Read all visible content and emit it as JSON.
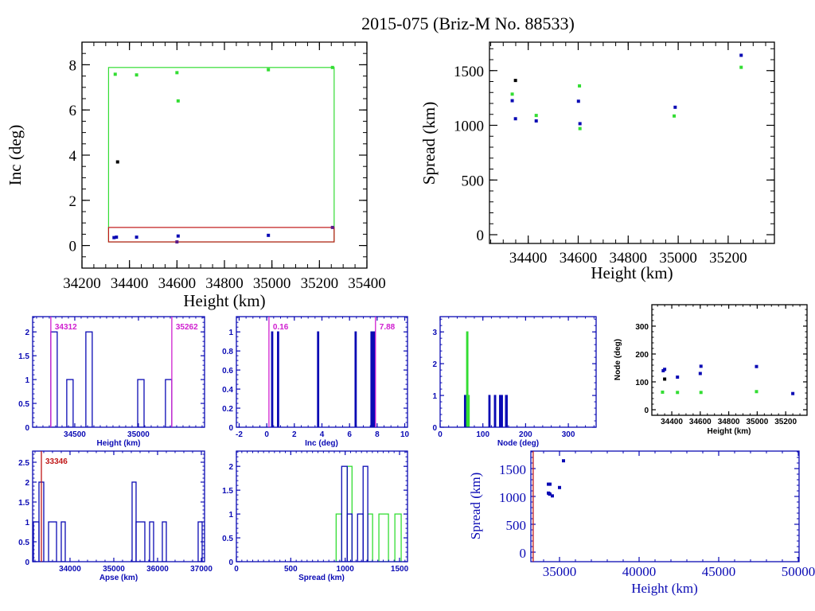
{
  "title": "2015-075 (Briz-M No. 88533)",
  "colors": {
    "black": "#000000",
    "blue": "#0a0ab4",
    "green": "#33dd33",
    "magenta": "#d020d0",
    "red": "#c01818",
    "purple": "#5a1a8a"
  },
  "chart_data": [
    {
      "id": "inc-vs-height",
      "type": "scatter",
      "xlabel": "Height (km)",
      "ylabel": "Inc (deg)",
      "xlim": [
        34200,
        35400
      ],
      "ylim": [
        -1,
        9
      ],
      "xticks": [
        34200,
        34400,
        34600,
        34800,
        35000,
        35200,
        35400
      ],
      "yticks": [
        0,
        2,
        4,
        6,
        8
      ],
      "boxes": [
        {
          "color": "green",
          "x": [
            34312,
            35262
          ],
          "y": [
            0.16,
            7.88
          ]
        },
        {
          "color": "red",
          "x": [
            34312,
            35262
          ],
          "y": [
            0.16,
            0.8
          ]
        }
      ],
      "series": [
        {
          "color": "green",
          "points": [
            [
              34340,
              7.58
            ],
            [
              34430,
              7.55
            ],
            [
              34600,
              7.65
            ],
            [
              34605,
              6.4
            ],
            [
              34985,
              7.78
            ],
            [
              35255,
              7.88
            ]
          ]
        },
        {
          "color": "black",
          "points": [
            [
              34350,
              3.7
            ]
          ]
        },
        {
          "color": "blue",
          "points": [
            [
              34335,
              0.35
            ],
            [
              34345,
              0.37
            ],
            [
              34430,
              0.37
            ],
            [
              34605,
              0.42
            ],
            [
              34985,
              0.45
            ]
          ]
        },
        {
          "color": "purple",
          "points": [
            [
              34600,
              0.16
            ],
            [
              35255,
              0.8
            ]
          ]
        }
      ]
    },
    {
      "id": "spread-vs-height",
      "type": "scatter",
      "xlabel": "Height (km)",
      "ylabel": "Spread (km)",
      "xlim": [
        34245,
        35385
      ],
      "ylim": [
        -80,
        1760
      ],
      "xticks": [
        34400,
        34600,
        34800,
        35000,
        35200
      ],
      "yticks": [
        0,
        500,
        1000,
        1500
      ],
      "series": [
        {
          "color": "black",
          "points": [
            [
              34349,
              1410
            ]
          ]
        },
        {
          "color": "green",
          "points": [
            [
              34336,
              1285
            ],
            [
              34432,
              1090
            ],
            [
              34605,
              1360
            ],
            [
              34607,
              970
            ],
            [
              34984,
              1085
            ],
            [
              35252,
              1530
            ]
          ]
        },
        {
          "color": "blue",
          "points": [
            [
              34336,
              1225
            ],
            [
              34349,
              1060
            ],
            [
              34432,
              1040
            ],
            [
              34601,
              1220
            ],
            [
              34607,
              1015
            ],
            [
              34988,
              1165
            ],
            [
              35252,
              1640
            ]
          ]
        }
      ]
    },
    {
      "id": "height-histogram",
      "type": "bar",
      "xlabel": "Height (km)",
      "ylabel": "",
      "xlim": [
        34169,
        35519
      ],
      "ylim": [
        0,
        2.32
      ],
      "xticks": [
        34500,
        35000
      ],
      "yticks": [
        0,
        0.5,
        1,
        1.5,
        2
      ],
      "bars": [
        {
          "color": "blue",
          "x0": 34312,
          "x1": 34362,
          "count": 2
        },
        {
          "color": "blue",
          "x0": 34437,
          "x1": 34487,
          "count": 1
        },
        {
          "color": "blue",
          "x0": 34587,
          "x1": 34637,
          "count": 2
        },
        {
          "color": "blue",
          "x0": 34994,
          "x1": 35044,
          "count": 1
        },
        {
          "color": "blue",
          "x0": 35212,
          "x1": 35262,
          "count": 1
        }
      ],
      "markers": [
        {
          "color": "magenta",
          "x": 34312,
          "label": "34312"
        },
        {
          "color": "magenta",
          "x": 35262,
          "label": "35262"
        }
      ]
    },
    {
      "id": "inc-histogram",
      "type": "bar",
      "xlabel": "Inc (deg)",
      "ylabel": "",
      "xlim": [
        -2.2,
        10.2
      ],
      "ylim": [
        0,
        1.16
      ],
      "xticks": [
        -2,
        0,
        2,
        4,
        6,
        8,
        10
      ],
      "yticks": [
        0,
        0.2,
        0.4,
        0.6,
        0.8,
        1
      ],
      "bars": [
        {
          "color": "blue",
          "x0": 0.35,
          "x1": 0.42,
          "count": 1
        },
        {
          "color": "blue",
          "x0": 0.78,
          "x1": 0.85,
          "count": 1
        },
        {
          "color": "blue",
          "x0": 3.68,
          "x1": 3.75,
          "count": 1
        },
        {
          "color": "blue",
          "x0": 6.4,
          "x1": 6.42,
          "count": 1
        },
        {
          "color": "blue",
          "x0": 7.55,
          "x1": 7.6,
          "count": 1
        },
        {
          "color": "blue",
          "x0": 7.65,
          "x1": 7.7,
          "count": 1
        },
        {
          "color": "blue",
          "x0": 7.76,
          "x1": 7.84,
          "count": 1
        }
      ],
      "markers": [
        {
          "color": "magenta",
          "x": 0.16,
          "label": "0.16"
        },
        {
          "color": "magenta",
          "x": 7.88,
          "label": "7.88"
        }
      ]
    },
    {
      "id": "node-histogram",
      "type": "bar",
      "xlabel": "Node (deg)",
      "ylabel": "",
      "xlim": [
        0,
        365
      ],
      "ylim": [
        0,
        3.48
      ],
      "xticks": [
        0,
        100,
        200,
        300
      ],
      "yticks": [
        0,
        1,
        2,
        3
      ],
      "bars": [
        {
          "color": "blue",
          "x0": 57,
          "x1": 62,
          "count": 1
        },
        {
          "color": "green",
          "x0": 62,
          "x1": 65,
          "count": 3
        },
        {
          "color": "green",
          "x0": 65,
          "x1": 68,
          "count": 1
        },
        {
          "color": "blue",
          "x0": 114,
          "x1": 116,
          "count": 1
        },
        {
          "color": "blue",
          "x0": 127,
          "x1": 130,
          "count": 1
        },
        {
          "color": "blue",
          "x0": 139,
          "x1": 141,
          "count": 1
        },
        {
          "color": "blue",
          "x0": 143,
          "x1": 145,
          "count": 1
        },
        {
          "color": "blue",
          "x0": 153,
          "x1": 157,
          "count": 1
        }
      ]
    },
    {
      "id": "node-vs-height",
      "type": "scatter",
      "xlabel": "Height (km)",
      "ylabel": "Node (deg)",
      "xlim": [
        34260,
        35350
      ],
      "ylim": [
        -20,
        377
      ],
      "xticks": [
        34400,
        34600,
        34800,
        35000,
        35200
      ],
      "yticks": [
        0,
        100,
        200,
        300
      ],
      "series": [
        {
          "color": "blue",
          "points": [
            [
              34340,
              140
            ],
            [
              34350,
              145
            ],
            [
              34440,
              117
            ],
            [
              34600,
              130
            ],
            [
              34605,
              156
            ],
            [
              34995,
              155
            ],
            [
              35250,
              58
            ]
          ]
        },
        {
          "color": "black",
          "points": [
            [
              34350,
              110
            ]
          ]
        },
        {
          "color": "green",
          "points": [
            [
              34335,
              63
            ],
            [
              34440,
              62
            ],
            [
              34605,
              62
            ],
            [
              34995,
              65
            ]
          ]
        }
      ]
    },
    {
      "id": "apse-histogram",
      "type": "bar",
      "xlabel": "Apse (km)",
      "ylabel": "",
      "xlim": [
        33146,
        37073
      ],
      "ylim": [
        0,
        2.78
      ],
      "xticks": [
        34000,
        35000,
        36000,
        37000
      ],
      "yticks": [
        0,
        0.5,
        1,
        1.5,
        2,
        2.5
      ],
      "bars": [
        {
          "color": "blue",
          "x0": 33164,
          "x1": 33291,
          "count": 1
        },
        {
          "color": "blue",
          "x0": 33291,
          "x1": 33400,
          "count": 2
        },
        {
          "color": "blue",
          "x0": 33510,
          "x1": 33692,
          "count": 1
        },
        {
          "color": "blue",
          "x0": 33800,
          "x1": 33891,
          "count": 1
        },
        {
          "color": "blue",
          "x0": 35418,
          "x1": 35509,
          "count": 2
        },
        {
          "color": "blue",
          "x0": 35509,
          "x1": 35709,
          "count": 1
        },
        {
          "color": "blue",
          "x0": 35818,
          "x1": 35909,
          "count": 1
        },
        {
          "color": "blue",
          "x0": 36109,
          "x1": 36200,
          "count": 1
        },
        {
          "color": "blue",
          "x0": 36927,
          "x1": 37018,
          "count": 1
        }
      ],
      "markers": [
        {
          "color": "red",
          "x": 33346,
          "label": "33346"
        }
      ]
    },
    {
      "id": "spread-histogram",
      "type": "bar",
      "xlabel": "Spread (km)",
      "ylabel": "",
      "xlim": [
        0,
        1573
      ],
      "ylim": [
        0,
        2.32
      ],
      "xticks": [
        0,
        500,
        1000,
        1500
      ],
      "yticks": [
        0,
        0.5,
        1,
        1.5,
        2
      ],
      "bars": [
        {
          "color": "green",
          "x0": 917,
          "x1": 968,
          "count": 1
        },
        {
          "color": "green",
          "x0": 1019,
          "x1": 1063,
          "count": 2
        },
        {
          "color": "green",
          "x0": 1208,
          "x1": 1252,
          "count": 1
        },
        {
          "color": "green",
          "x0": 1310,
          "x1": 1398,
          "count": 1
        },
        {
          "color": "green",
          "x0": 1457,
          "x1": 1515,
          "count": 1
        },
        {
          "color": "blue",
          "x0": 968,
          "x1": 1019,
          "count": 2
        },
        {
          "color": "blue",
          "x0": 1019,
          "x1": 1063,
          "count": 1
        },
        {
          "color": "blue",
          "x0": 1114,
          "x1": 1165,
          "count": 1
        },
        {
          "color": "blue",
          "x0": 1165,
          "x1": 1208,
          "count": 2
        }
      ]
    },
    {
      "id": "spread-vs-height-wide",
      "type": "scatter",
      "xlabel": "Height (km)",
      "ylabel": "Spread (km)",
      "xlim": [
        33200,
        50050
      ],
      "ylim": [
        -171,
        1814
      ],
      "xticks": [
        35000,
        40000,
        45000,
        50000
      ],
      "yticks": [
        0,
        500,
        1000,
        1500
      ],
      "markers": [
        {
          "color": "red",
          "x": 33346,
          "label": ""
        }
      ],
      "series": [
        {
          "color": "blue",
          "points": [
            [
              34300,
              1220
            ],
            [
              34400,
              1220
            ],
            [
              34300,
              1060
            ],
            [
              34400,
              1040
            ],
            [
              34350,
              1050
            ],
            [
              34550,
              1010
            ],
            [
              35000,
              1160
            ],
            [
              35250,
              1640
            ]
          ]
        }
      ]
    }
  ]
}
